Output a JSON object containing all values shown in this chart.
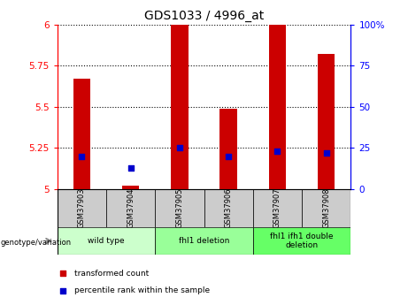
{
  "title": "GDS1033 / 4996_at",
  "samples": [
    "GSM37903",
    "GSM37904",
    "GSM37905",
    "GSM37906",
    "GSM37907",
    "GSM37908"
  ],
  "transformed_counts": [
    5.67,
    5.02,
    6.0,
    5.49,
    6.0,
    5.82
  ],
  "percentile_ranks": [
    20.0,
    13.0,
    25.0,
    20.0,
    23.0,
    22.0
  ],
  "ylim_left": [
    5.0,
    6.0
  ],
  "ylim_right": [
    0,
    100
  ],
  "yticks_left": [
    5.0,
    5.25,
    5.5,
    5.75,
    6.0
  ],
  "yticks_right": [
    0,
    25,
    50,
    75,
    100
  ],
  "ytick_labels_left": [
    "5",
    "5.25",
    "5.5",
    "5.75",
    "6"
  ],
  "ytick_labels_right": [
    "0",
    "25",
    "50",
    "75",
    "100%"
  ],
  "groups": [
    {
      "label": "wild type",
      "samples": [
        0,
        1
      ],
      "color": "#ccffcc"
    },
    {
      "label": "fhl1 deletion",
      "samples": [
        2,
        3
      ],
      "color": "#99ff99"
    },
    {
      "label": "fhl1 ifh1 double\ndeletion",
      "samples": [
        4,
        5
      ],
      "color": "#66ff66"
    }
  ],
  "bar_color": "#cc0000",
  "dot_color": "#0000cc",
  "sample_bg_color": "#cccccc",
  "bar_width": 0.35,
  "bar_bottom": 5.0
}
